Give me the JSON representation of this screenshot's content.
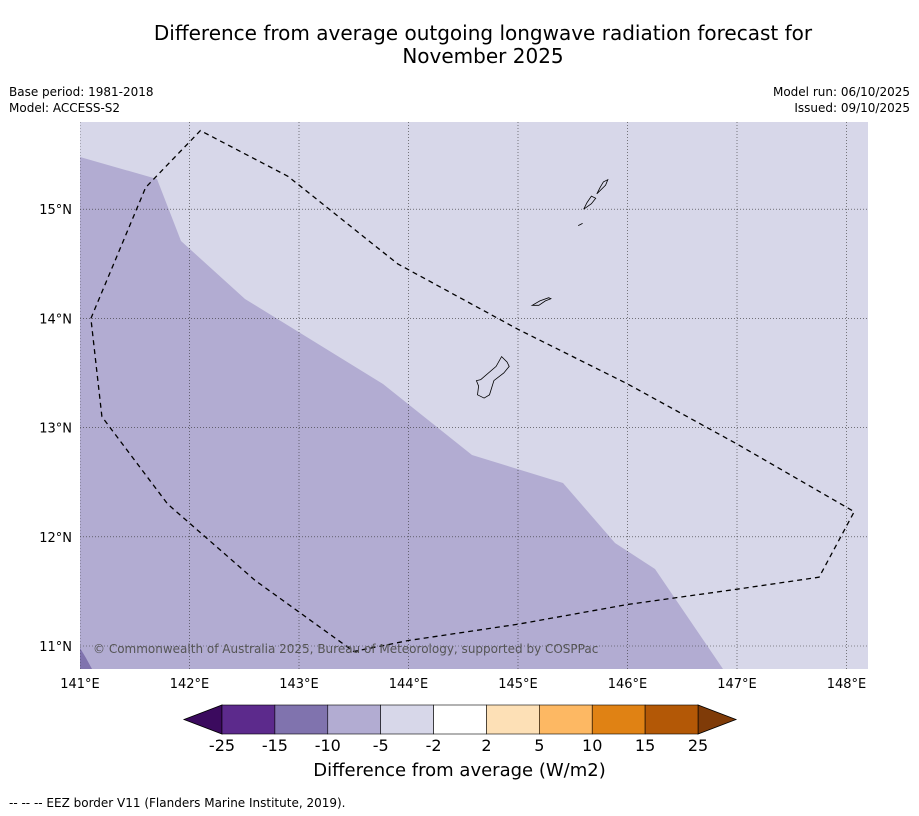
{
  "title_line1": "Difference from average outgoing longwave radiation forecast for",
  "title_line2": "November 2025",
  "meta_left": {
    "base_period": "Base period: 1981-2018",
    "model": "Model: ACCESS-S2"
  },
  "meta_right": {
    "model_run": "Model run: 06/10/2025",
    "issued": "Issued: 09/10/2025"
  },
  "map": {
    "lon_range": [
      141,
      148.2
    ],
    "lat_range": [
      10.8,
      15.8
    ],
    "lon_ticks": [
      141,
      142,
      143,
      144,
      145,
      146,
      147,
      148
    ],
    "lat_ticks": [
      11,
      12,
      13,
      14,
      15
    ],
    "lon_labels": [
      "141°E",
      "142°E",
      "143°E",
      "144°E",
      "145°E",
      "146°E",
      "147°E",
      "148°E"
    ],
    "lat_labels": [
      "11°N",
      "12°N",
      "13°N",
      "14°N",
      "15°N"
    ],
    "copyright": "© Commonwealth of Australia 2025, Bureau of Meteorology, supported by COSPPac",
    "regions": [
      {
        "category": "-2 to -5",
        "color": "#d7d7e9"
      },
      {
        "category": "-5 to -10",
        "color": "#b2acd2"
      },
      {
        "category": "-10 to -15",
        "color": "#8073ae"
      }
    ],
    "boundary_lonlat": [
      [
        141.2,
        13.1
      ],
      [
        141.1,
        14.0
      ],
      [
        141.6,
        15.2
      ],
      [
        142.1,
        15.72
      ],
      [
        142.9,
        15.3
      ],
      [
        143.9,
        14.5
      ],
      [
        145.0,
        13.9
      ],
      [
        146.0,
        13.4
      ],
      [
        147.0,
        12.85
      ],
      [
        148.07,
        12.23
      ],
      [
        147.75,
        11.63
      ],
      [
        147.0,
        11.52
      ],
      [
        146.0,
        11.38
      ],
      [
        145.0,
        11.2
      ],
      [
        144.0,
        11.05
      ],
      [
        143.5,
        10.95
      ],
      [
        142.6,
        11.6
      ],
      [
        141.8,
        12.3
      ],
      [
        141.2,
        13.1
      ]
    ],
    "islands_lonlat": [
      [
        [
          144.66,
          13.44
        ],
        [
          144.8,
          13.56
        ],
        [
          144.85,
          13.65
        ],
        [
          144.9,
          13.6
        ],
        [
          144.92,
          13.56
        ],
        [
          144.87,
          13.5
        ],
        [
          144.78,
          13.43
        ],
        [
          144.74,
          13.3
        ],
        [
          144.69,
          13.27
        ],
        [
          144.63,
          13.3
        ],
        [
          144.64,
          13.38
        ],
        [
          144.62,
          13.43
        ],
        [
          144.66,
          13.44
        ]
      ],
      [
        [
          145.13,
          14.12
        ],
        [
          145.2,
          14.16
        ],
        [
          145.28,
          14.19
        ],
        [
          145.3,
          14.18
        ],
        [
          145.25,
          14.16
        ],
        [
          145.19,
          14.12
        ],
        [
          145.13,
          14.12
        ]
      ],
      [
        [
          145.6,
          15.0
        ],
        [
          145.67,
          15.05
        ],
        [
          145.71,
          15.1
        ],
        [
          145.67,
          15.12
        ],
        [
          145.63,
          15.06
        ],
        [
          145.6,
          15.0
        ]
      ],
      [
        [
          145.72,
          15.14
        ],
        [
          145.8,
          15.22
        ],
        [
          145.82,
          15.27
        ],
        [
          145.78,
          15.25
        ],
        [
          145.75,
          15.2
        ],
        [
          145.72,
          15.14
        ]
      ],
      [
        [
          145.55,
          14.85
        ],
        [
          145.59,
          14.87
        ]
      ]
    ]
  },
  "colorbar": {
    "levels": [
      "-25",
      "-15",
      "-10",
      "-5",
      "-2",
      "2",
      "5",
      "10",
      "15",
      "25"
    ],
    "colors": [
      "#5c2a8c",
      "#8073ae",
      "#b2acd2",
      "#d7d7e9",
      "#ffffff",
      "#fde0b6",
      "#fdb863",
      "#e08214",
      "#b35806"
    ],
    "under_color": "#3b0a5e",
    "over_color": "#7f3b08",
    "label": "Difference from average (W/m2)"
  },
  "footer": "--  --  -- EEZ border V11 (Flanders Marine Institute, 2019)."
}
